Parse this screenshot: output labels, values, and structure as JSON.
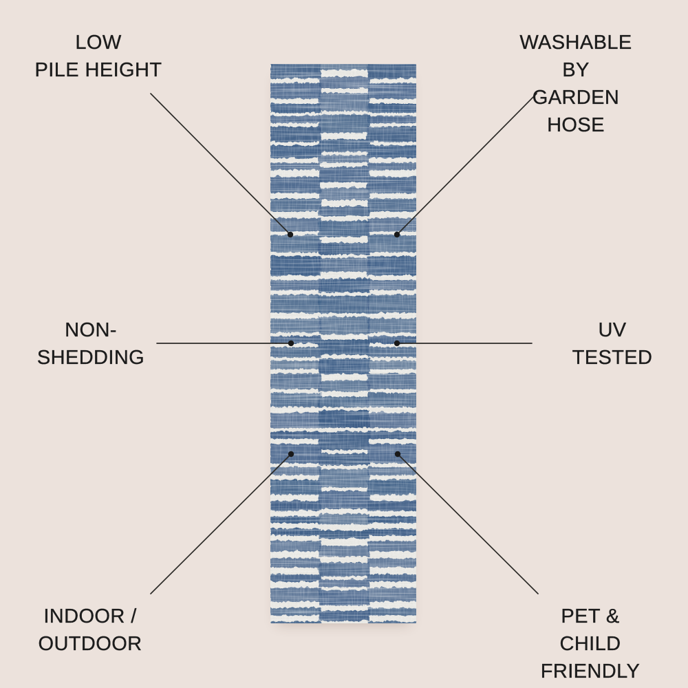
{
  "colors": {
    "background": "#ece2dc",
    "text": "#1c1c1c",
    "line": "#2b2a27",
    "rug_base": "#eae9e4",
    "rug_stripe": "#3d5d86"
  },
  "rug": {
    "alt": "blue and white broken-stripe runner rug"
  },
  "features": [
    {
      "id": "low-pile-height",
      "label": "LOW\nPILE HEIGHT"
    },
    {
      "id": "washable-by-garden-hose",
      "label": "WASHABLE BY\nGARDEN HOSE"
    },
    {
      "id": "non-shedding",
      "label": "NON-\nSHEDDING"
    },
    {
      "id": "uv-tested",
      "label": "UV\nTESTED"
    },
    {
      "id": "indoor-outdoor",
      "label": "INDOOR /\nOUTDOOR"
    },
    {
      "id": "pet-child-friendly",
      "label": "PET & CHILD\nFRIENDLY"
    }
  ]
}
